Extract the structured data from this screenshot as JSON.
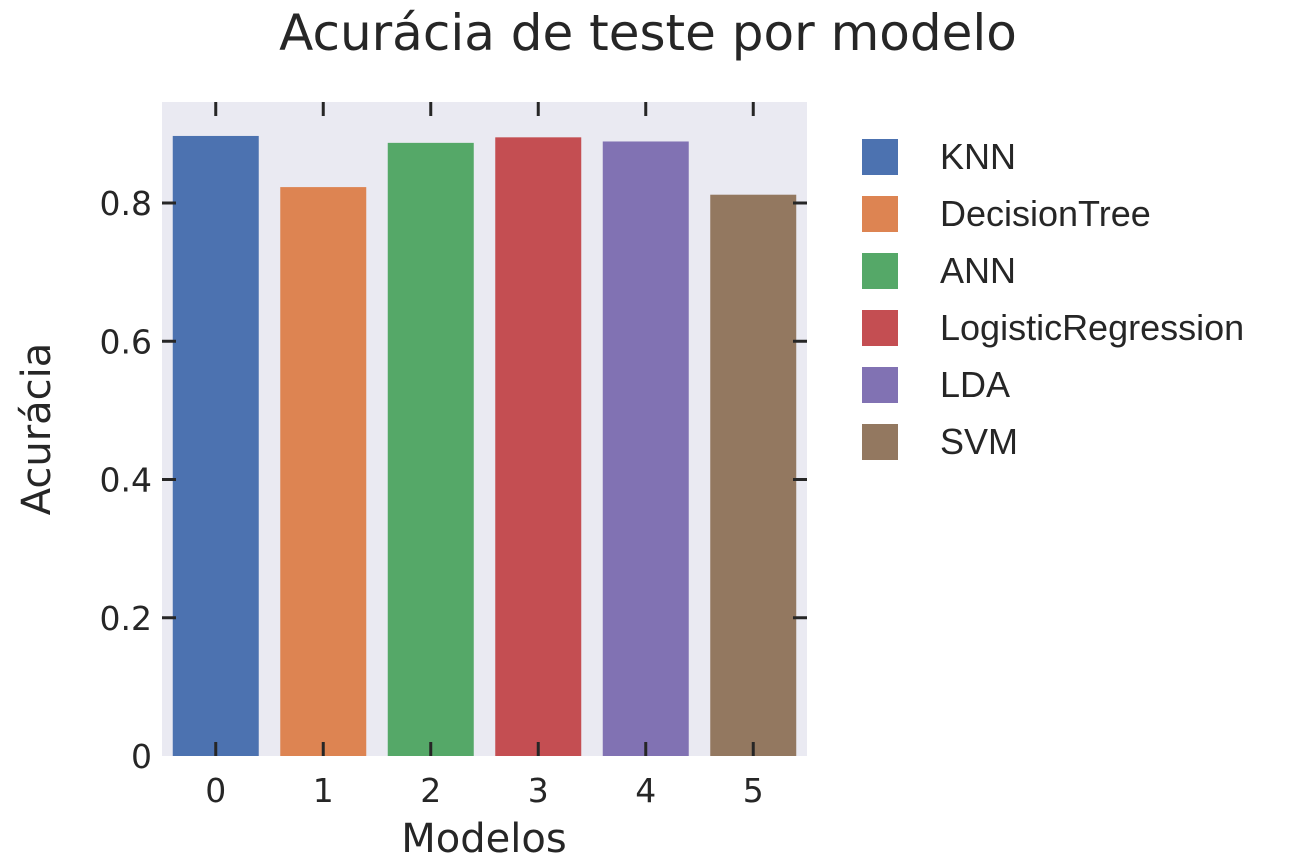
{
  "chart_data": {
    "type": "bar",
    "title": "Acurácia de teste por modelo",
    "xlabel": "Modelos",
    "ylabel": "Acurácia",
    "categories": [
      "0",
      "1",
      "2",
      "3",
      "4",
      "5"
    ],
    "series": [
      {
        "name": "KNN",
        "category": "0",
        "value": 0.897,
        "color": "#4c72b0"
      },
      {
        "name": "DecisionTree",
        "category": "1",
        "value": 0.823,
        "color": "#dd8452"
      },
      {
        "name": "ANN",
        "category": "2",
        "value": 0.887,
        "color": "#55a868"
      },
      {
        "name": "LogisticRegression",
        "category": "3",
        "value": 0.895,
        "color": "#c44e52"
      },
      {
        "name": "LDA",
        "category": "4",
        "value": 0.889,
        "color": "#8172b3"
      },
      {
        "name": "SVM",
        "category": "5",
        "value": 0.812,
        "color": "#937860"
      }
    ],
    "yticks": [
      0,
      0.2,
      0.4,
      0.6,
      0.8
    ],
    "ytick_labels": [
      "0",
      "0.2",
      "0.4",
      "0.6",
      "0.8"
    ],
    "ylim": [
      0,
      0.95
    ],
    "grid": false,
    "legend_position": "outside-right",
    "colors": {
      "plot_background": "#eaeaf2",
      "tick": "#262626"
    }
  }
}
